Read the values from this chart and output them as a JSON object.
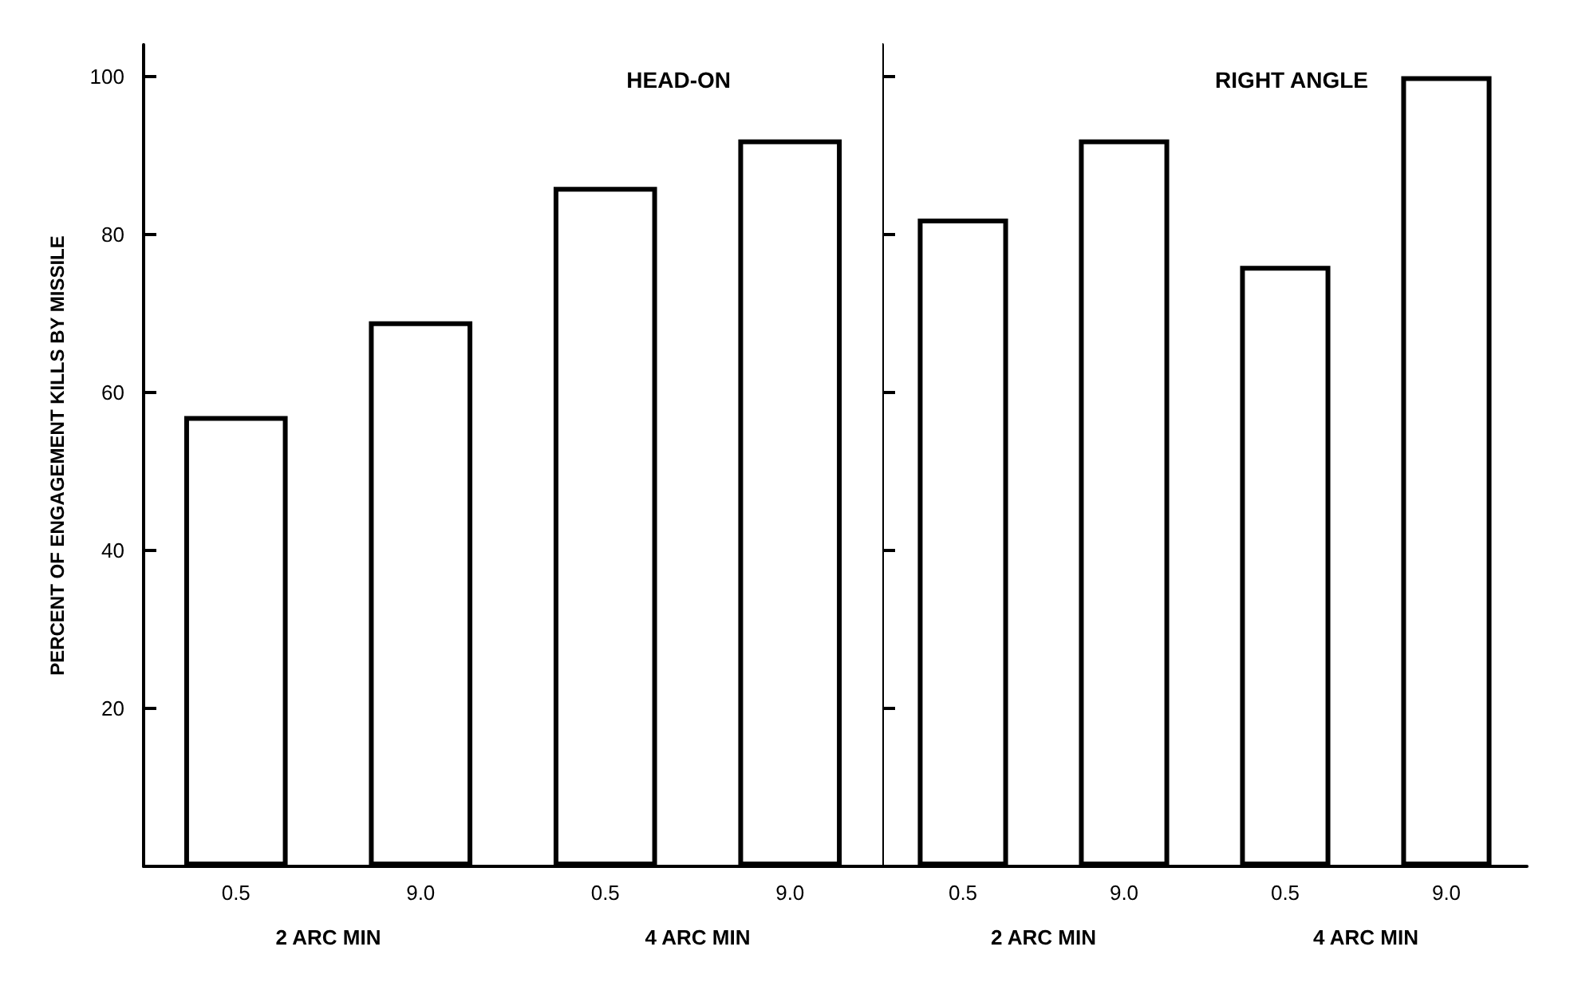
{
  "chart_data": [
    {
      "type": "bar",
      "title": "HEAD-ON",
      "ylabel": "PERCENT OF ENGAGEMENT KILLS BY MISSILE",
      "categories": [
        "0.5",
        "9.0",
        "0.5",
        "9.0"
      ],
      "values": [
        57,
        69,
        86,
        92
      ],
      "color": "#ffffff",
      "ylim": [
        0,
        104
      ],
      "yticks": [
        20,
        40,
        60,
        80,
        100
      ],
      "grid": false,
      "annotations": [
        "2 ARC MIN",
        "4 ARC MIN"
      ]
    },
    {
      "type": "bar",
      "title": "RIGHT ANGLE",
      "categories": [
        "0.5",
        "9.0",
        "0.5",
        "9.0"
      ],
      "values": [
        82,
        92,
        76,
        100
      ],
      "color": "#ffffff",
      "ylim": [
        0,
        104
      ],
      "yticks": [
        20,
        40,
        60,
        80,
        100
      ],
      "grid": false,
      "tick_labels": "x",
      "annotations": [
        "2 ARC MIN",
        "4 ARC MIN"
      ]
    }
  ]
}
